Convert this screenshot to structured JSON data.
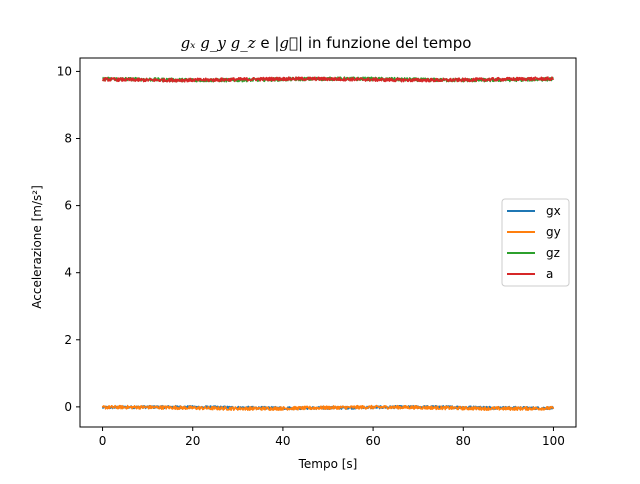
{
  "chart_data": {
    "type": "line",
    "title": "g_x g_y g_z e |g⃗|  in funzione del tempo",
    "title_parts": {
      "math": "gₓ g_y g_z",
      "plain_e": " e ",
      "abs_g": "|g⃗|",
      "rest": "  in funzione del tempo"
    },
    "xlabel": "Tempo [s]",
    "ylabel": "Accelerazione [m/s²]",
    "xlim": [
      -5,
      105
    ],
    "ylim": [
      -0.6,
      10.4
    ],
    "x_ticks": [
      0,
      20,
      40,
      60,
      80,
      100
    ],
    "y_ticks": [
      0,
      2,
      4,
      6,
      8,
      10
    ],
    "grid": false,
    "legend_position": "center-right",
    "series": [
      {
        "name": "gx",
        "color": "#1f77b4",
        "x_range": [
          0,
          100
        ],
        "mean": -0.02,
        "noise": 0.04
      },
      {
        "name": "gy",
        "color": "#ff7f0e",
        "x_range": [
          0,
          100
        ],
        "mean": -0.03,
        "noise": 0.05
      },
      {
        "name": "gz",
        "color": "#2ca02c",
        "x_range": [
          0,
          100
        ],
        "mean": 9.76,
        "noise": 0.05
      },
      {
        "name": "a",
        "color": "#d62728",
        "x_range": [
          0,
          100
        ],
        "mean": 9.76,
        "noise": 0.05
      }
    ]
  }
}
